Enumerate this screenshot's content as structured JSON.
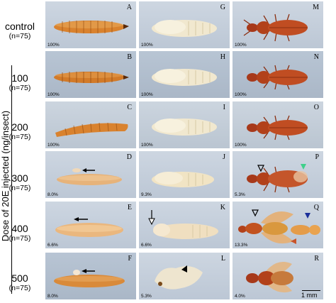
{
  "y_axis_title": "Dose of 20E injected (ng/insect)",
  "rows": [
    {
      "dose": "control",
      "n": "(n=75)"
    },
    {
      "dose": "100",
      "n": "(n=75)"
    },
    {
      "dose": "200",
      "n": "(n=75)"
    },
    {
      "dose": "300",
      "n": "(n=75)"
    },
    {
      "dose": "400",
      "n": "(n=75)"
    },
    {
      "dose": "500",
      "n": "(n=75)"
    }
  ],
  "panels": [
    [
      {
        "letter": "A",
        "pct": "100%"
      },
      {
        "letter": "G",
        "pct": "100%"
      },
      {
        "letter": "M",
        "pct": "100%"
      }
    ],
    [
      {
        "letter": "B",
        "pct": "100%"
      },
      {
        "letter": "H",
        "pct": "100%"
      },
      {
        "letter": "N",
        "pct": "100%"
      }
    ],
    [
      {
        "letter": "C",
        "pct": "100%"
      },
      {
        "letter": "I",
        "pct": "100%"
      },
      {
        "letter": "O",
        "pct": "100%"
      }
    ],
    [
      {
        "letter": "D",
        "pct": "8.0%"
      },
      {
        "letter": "J",
        "pct": "9.3%"
      },
      {
        "letter": "P",
        "pct": "5.3%"
      }
    ],
    [
      {
        "letter": "E",
        "pct": "6.6%"
      },
      {
        "letter": "K",
        "pct": "6.6%"
      },
      {
        "letter": "Q",
        "pct": "13.3%"
      }
    ],
    [
      {
        "letter": "F",
        "pct": "8.0%"
      },
      {
        "letter": "L",
        "pct": "5.3%"
      },
      {
        "letter": "R",
        "pct": "4.0%"
      }
    ]
  ],
  "scale_bar": "1 mm",
  "colors": {
    "larva": "#d9822e",
    "pupa": "#f1e8cf",
    "adult": "#b2411a",
    "arrow_black": "#000000",
    "arrow_green": "#3fd08a",
    "arrow_blue": "#1b2f9a",
    "arrow_red": "#c8532a"
  }
}
